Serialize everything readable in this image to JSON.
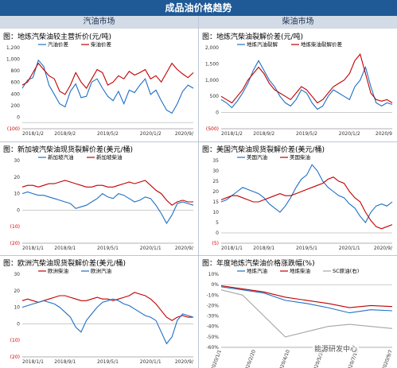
{
  "header": {
    "title": "成品油价格趋势"
  },
  "sections": {
    "left": "汽油市场",
    "right": "柴油市场"
  },
  "watermark": "能源研发中心",
  "colors": {
    "blue": "#1f6fc5",
    "red": "#c00000",
    "gray": "#a6a6a6"
  },
  "chart_data": [
    {
      "type": "line",
      "title": "图：地炼汽柴油较主营折价(元/吨)",
      "x_ticks": [
        "2018/1/2",
        "2018/9/2",
        "2019/5/2",
        "2020/1/2",
        "2020/9/"
      ],
      "y_ticks": [
        "1,200",
        "1,000",
        "800",
        "600",
        "400",
        "200",
        "0",
        "(100)"
      ],
      "ylim": [
        -100,
        1200
      ],
      "series": [
        {
          "name": "汽油价差",
          "color": "blue",
          "x": [
            "2018/1",
            "2018/2",
            "2018/3",
            "2018/4",
            "2018/5",
            "2018/6",
            "2018/7",
            "2018/8",
            "2018/9",
            "2018/10",
            "2018/11",
            "2018/12",
            "2019/1",
            "2019/2",
            "2019/3",
            "2019/4",
            "2019/5",
            "2019/6",
            "2019/7",
            "2019/8",
            "2019/9",
            "2019/10",
            "2019/11",
            "2019/12",
            "2020/1",
            "2020/2",
            "2020/3",
            "2020/4",
            "2020/5",
            "2020/6",
            "2020/7",
            "2020/8",
            "2020/9"
          ],
          "values": [
            550,
            680,
            720,
            1000,
            900,
            600,
            450,
            300,
            250,
            500,
            620,
            400,
            420,
            650,
            700,
            550,
            420,
            350,
            500,
            300,
            520,
            480,
            600,
            700,
            450,
            520,
            350,
            200,
            150,
            300,
            500,
            600,
            550
          ]
        },
        {
          "name": "柴油价差",
          "color": "red",
          "x": [
            "2018/1",
            "2018/2",
            "2018/3",
            "2018/4",
            "2018/5",
            "2018/6",
            "2018/7",
            "2018/8",
            "2018/9",
            "2018/10",
            "2018/11",
            "2018/12",
            "2019/1",
            "2019/2",
            "2019/3",
            "2019/4",
            "2019/5",
            "2019/6",
            "2019/7",
            "2019/8",
            "2019/9",
            "2019/10",
            "2019/11",
            "2019/12",
            "2020/1",
            "2020/2",
            "2020/3",
            "2020/4",
            "2020/5",
            "2020/6",
            "2020/7",
            "2020/8",
            "2020/9"
          ],
          "values": [
            600,
            650,
            800,
            950,
            850,
            750,
            700,
            500,
            450,
            600,
            800,
            650,
            550,
            700,
            850,
            800,
            600,
            650,
            750,
            700,
            820,
            760,
            800,
            850,
            700,
            750,
            650,
            800,
            950,
            850,
            780,
            720,
            800
          ]
        }
      ]
    },
    {
      "type": "line",
      "title": "图：地炼汽柴油裂解价差(元/吨)",
      "x_ticks": [
        "2018/1/2",
        "2018/9/2",
        "2019/5/2",
        "2020/1/2",
        "2020/9"
      ],
      "y_ticks": [
        "2,000",
        "1,500",
        "1,000",
        "500",
        "0",
        "(500)"
      ],
      "ylim": [
        -500,
        2000
      ],
      "series": [
        {
          "name": "地炼汽油裂解",
          "color": "blue",
          "x": [
            "2018/1",
            "2018/2",
            "2018/3",
            "2018/4",
            "2018/5",
            "2018/6",
            "2018/7",
            "2018/8",
            "2018/9",
            "2018/10",
            "2018/11",
            "2018/12",
            "2019/1",
            "2019/2",
            "2019/3",
            "2019/4",
            "2019/5",
            "2019/6",
            "2019/7",
            "2019/8",
            "2019/9",
            "2019/10",
            "2019/11",
            "2019/12",
            "2020/1",
            "2020/2",
            "2020/3",
            "2020/4",
            "2020/5",
            "2020/6",
            "2020/7",
            "2020/8",
            "2020/9"
          ],
          "values": [
            400,
            300,
            150,
            350,
            600,
            900,
            1300,
            1600,
            1300,
            1000,
            800,
            500,
            300,
            200,
            400,
            700,
            600,
            300,
            100,
            200,
            500,
            700,
            600,
            500,
            400,
            800,
            1000,
            1400,
            800,
            300,
            200,
            300,
            250
          ]
        },
        {
          "name": "地炼柴油裂解价差",
          "color": "red",
          "x": [
            "2018/1",
            "2018/2",
            "2018/3",
            "2018/4",
            "2018/5",
            "2018/6",
            "2018/7",
            "2018/8",
            "2018/9",
            "2018/10",
            "2018/11",
            "2018/12",
            "2019/1",
            "2019/2",
            "2019/3",
            "2019/4",
            "2019/5",
            "2019/6",
            "2019/7",
            "2019/8",
            "2019/9",
            "2019/10",
            "2019/11",
            "2019/12",
            "2020/1",
            "2020/2",
            "2020/3",
            "2020/4",
            "2020/5",
            "2020/6",
            "2020/7",
            "2020/8",
            "2020/9"
          ],
          "values": [
            500,
            400,
            300,
            500,
            700,
            1000,
            1200,
            1400,
            1200,
            900,
            700,
            600,
            500,
            400,
            600,
            800,
            700,
            500,
            300,
            400,
            600,
            800,
            900,
            1000,
            1200,
            1600,
            1800,
            1200,
            600,
            400,
            350,
            400,
            300
          ]
        }
      ]
    },
    {
      "type": "line",
      "title": "图：新加坡汽柴油现货裂解价差(美元/桶)",
      "x_ticks": [
        "2018/1/1",
        "2018/9/1",
        "2019/5/1",
        "2020/1/1",
        "2020/9/"
      ],
      "y_ticks": [
        "30",
        "20",
        "10",
        "0",
        "(10)",
        "(20)"
      ],
      "ylim": [
        -20,
        30
      ],
      "series": [
        {
          "name": "新加坡汽油",
          "color": "blue",
          "x": [
            "2018/1",
            "2018/2",
            "2018/3",
            "2018/4",
            "2018/5",
            "2018/6",
            "2018/7",
            "2018/8",
            "2018/9",
            "2018/10",
            "2018/11",
            "2018/12",
            "2019/1",
            "2019/2",
            "2019/3",
            "2019/4",
            "2019/5",
            "2019/6",
            "2019/7",
            "2019/8",
            "2019/9",
            "2019/10",
            "2019/11",
            "2019/12",
            "2020/1",
            "2020/2",
            "2020/3",
            "2020/4",
            "2020/5",
            "2020/6",
            "2020/7",
            "2020/8",
            "2020/9"
          ],
          "values": [
            10,
            11,
            10,
            9,
            9,
            8,
            7,
            6,
            5,
            4,
            1,
            2,
            3,
            5,
            7,
            10,
            8,
            7,
            10,
            9,
            7,
            5,
            6,
            8,
            7,
            3,
            -2,
            -8,
            -3,
            4,
            5,
            4,
            3
          ]
        },
        {
          "name": "新加坡柴油",
          "color": "red",
          "x": [
            "2018/1",
            "2018/2",
            "2018/3",
            "2018/4",
            "2018/5",
            "2018/6",
            "2018/7",
            "2018/8",
            "2018/9",
            "2018/10",
            "2018/11",
            "2018/12",
            "2019/1",
            "2019/2",
            "2019/3",
            "2019/4",
            "2019/5",
            "2019/6",
            "2019/7",
            "2019/8",
            "2019/9",
            "2019/10",
            "2019/11",
            "2019/12",
            "2020/1",
            "2020/2",
            "2020/3",
            "2020/4",
            "2020/5",
            "2020/6",
            "2020/7",
            "2020/8",
            "2020/9"
          ],
          "values": [
            14,
            15,
            15,
            14,
            15,
            16,
            16,
            17,
            18,
            17,
            16,
            15,
            14,
            14,
            15,
            15,
            14,
            14,
            15,
            16,
            17,
            16,
            17,
            18,
            15,
            12,
            10,
            6,
            3,
            5,
            6,
            5,
            5
          ]
        }
      ]
    },
    {
      "type": "line",
      "title": "图：美国汽柴油现货裂解价差(美元/桶)",
      "x_ticks": [
        "2018/1/1",
        "2018/9/1",
        "2019/5/1",
        "2020/1/1",
        "2020/9/"
      ],
      "y_ticks": [
        "35",
        "30",
        "25",
        "20",
        "15",
        "10",
        "5",
        "0",
        "(5)"
      ],
      "ylim": [
        -5,
        35
      ],
      "series": [
        {
          "name": "美国汽油",
          "color": "blue",
          "x": [
            "2018/1",
            "2018/2",
            "2018/3",
            "2018/4",
            "2018/5",
            "2018/6",
            "2018/7",
            "2018/8",
            "2018/9",
            "2018/10",
            "2018/11",
            "2018/12",
            "2019/1",
            "2019/2",
            "2019/3",
            "2019/4",
            "2019/5",
            "2019/6",
            "2019/7",
            "2019/8",
            "2019/9",
            "2019/10",
            "2019/11",
            "2019/12",
            "2020/1",
            "2020/2",
            "2020/3",
            "2020/4",
            "2020/5",
            "2020/6",
            "2020/7",
            "2020/8",
            "2020/9"
          ],
          "values": [
            15,
            16,
            18,
            20,
            22,
            21,
            20,
            19,
            17,
            14,
            12,
            10,
            13,
            17,
            22,
            26,
            28,
            33,
            30,
            25,
            22,
            20,
            18,
            17,
            14,
            12,
            8,
            5,
            10,
            13,
            14,
            13,
            15
          ]
        },
        {
          "name": "美国柴油",
          "color": "red",
          "x": [
            "2018/1",
            "2018/2",
            "2018/3",
            "2018/4",
            "2018/5",
            "2018/6",
            "2018/7",
            "2018/8",
            "2018/9",
            "2018/10",
            "2018/11",
            "2018/12",
            "2019/1",
            "2019/2",
            "2019/3",
            "2019/4",
            "2019/5",
            "2019/6",
            "2019/7",
            "2019/8",
            "2019/9",
            "2019/10",
            "2019/11",
            "2019/12",
            "2020/1",
            "2020/2",
            "2020/3",
            "2020/4",
            "2020/5",
            "2020/6",
            "2020/7",
            "2020/8",
            "2020/9"
          ],
          "values": [
            16,
            17,
            18,
            18,
            17,
            16,
            15,
            15,
            16,
            17,
            18,
            19,
            18,
            18,
            19,
            20,
            21,
            22,
            23,
            24,
            26,
            27,
            25,
            24,
            20,
            17,
            15,
            10,
            6,
            3,
            2,
            3,
            4
          ]
        }
      ]
    },
    {
      "type": "line",
      "title": "图：欧洲汽柴油现货裂解价差(美元/桶)",
      "x_ticks": [
        "2018/1/1",
        "2018/9/1",
        "2019/5/1",
        "2020/1/1",
        "2020/9/"
      ],
      "y_ticks": [
        "30",
        "20",
        "10",
        "0",
        "(10)",
        "(20)"
      ],
      "ylim": [
        -20,
        30
      ],
      "series": [
        {
          "name": "欧洲柴油",
          "color": "red",
          "x": [
            "2018/1",
            "2018/2",
            "2018/3",
            "2018/4",
            "2018/5",
            "2018/6",
            "2018/7",
            "2018/8",
            "2018/9",
            "2018/10",
            "2018/11",
            "2018/12",
            "2019/1",
            "2019/2",
            "2019/3",
            "2019/4",
            "2019/5",
            "2019/6",
            "2019/7",
            "2019/8",
            "2019/9",
            "2019/10",
            "2019/11",
            "2019/12",
            "2020/1",
            "2020/2",
            "2020/3",
            "2020/4",
            "2020/5",
            "2020/6",
            "2020/7",
            "2020/8",
            "2020/9"
          ],
          "values": [
            14,
            15,
            14,
            13,
            14,
            15,
            16,
            17,
            17,
            16,
            15,
            14,
            14,
            15,
            16,
            15,
            15,
            14,
            15,
            16,
            17,
            19,
            18,
            17,
            15,
            12,
            8,
            4,
            2,
            4,
            5,
            4,
            4
          ]
        },
        {
          "name": "欧洲汽油",
          "color": "blue",
          "x": [
            "2018/1",
            "2018/2",
            "2018/3",
            "2018/4",
            "2018/5",
            "2018/6",
            "2018/7",
            "2018/8",
            "2018/9",
            "2018/10",
            "2018/11",
            "2018/12",
            "2019/1",
            "2019/2",
            "2019/3",
            "2019/4",
            "2019/5",
            "2019/6",
            "2019/7",
            "2019/8",
            "2019/9",
            "2019/10",
            "2019/11",
            "2019/12",
            "2020/1",
            "2020/2",
            "2020/3",
            "2020/4",
            "2020/5",
            "2020/6",
            "2020/7",
            "2020/8",
            "2020/9"
          ],
          "values": [
            10,
            11,
            12,
            13,
            14,
            13,
            12,
            10,
            7,
            4,
            -2,
            -5,
            2,
            6,
            10,
            13,
            14,
            15,
            14,
            12,
            11,
            9,
            7,
            5,
            4,
            2,
            -5,
            -12,
            -8,
            2,
            6,
            5,
            4
          ]
        }
      ]
    },
    {
      "type": "line",
      "title": "图：年度地炼汽柴油价格涨跌幅(%)",
      "x_ticks": [
        "2020/1/1",
        "2020/2/20",
        "2020/4/10",
        "2020/5/30",
        "2020/7/19",
        "2020/9/7"
      ],
      "y_ticks": [
        "10%",
        "0%",
        "-10%",
        "-20%",
        "-30%",
        "-40%",
        "-50%",
        "-60%"
      ],
      "ylim": [
        -60,
        10
      ],
      "series": [
        {
          "name": "地炼汽油",
          "color": "blue",
          "x": [
            "2020/1",
            "2020/2",
            "2020/3",
            "2020/4",
            "2020/5",
            "2020/6",
            "2020/7",
            "2020/8",
            "2020/9"
          ],
          "values": [
            -2,
            -5,
            -8,
            -15,
            -18,
            -22,
            -27,
            -24,
            -25
          ]
        },
        {
          "name": "地炼柴油",
          "color": "red",
          "x": [
            "2020/1",
            "2020/2",
            "2020/3",
            "2020/4",
            "2020/5",
            "2020/6",
            "2020/7",
            "2020/8",
            "2020/9"
          ],
          "values": [
            -1,
            -4,
            -7,
            -12,
            -15,
            -18,
            -22,
            -20,
            -21
          ]
        },
        {
          "name": "SC原油(右)",
          "color": "gray",
          "x": [
            "2020/1",
            "2020/2",
            "2020/3",
            "2020/4",
            "2020/5",
            "2020/6",
            "2020/7",
            "2020/8",
            "2020/9"
          ],
          "values": [
            -5,
            -10,
            -30,
            -50,
            -45,
            -40,
            -38,
            -40,
            -42
          ]
        }
      ]
    }
  ]
}
